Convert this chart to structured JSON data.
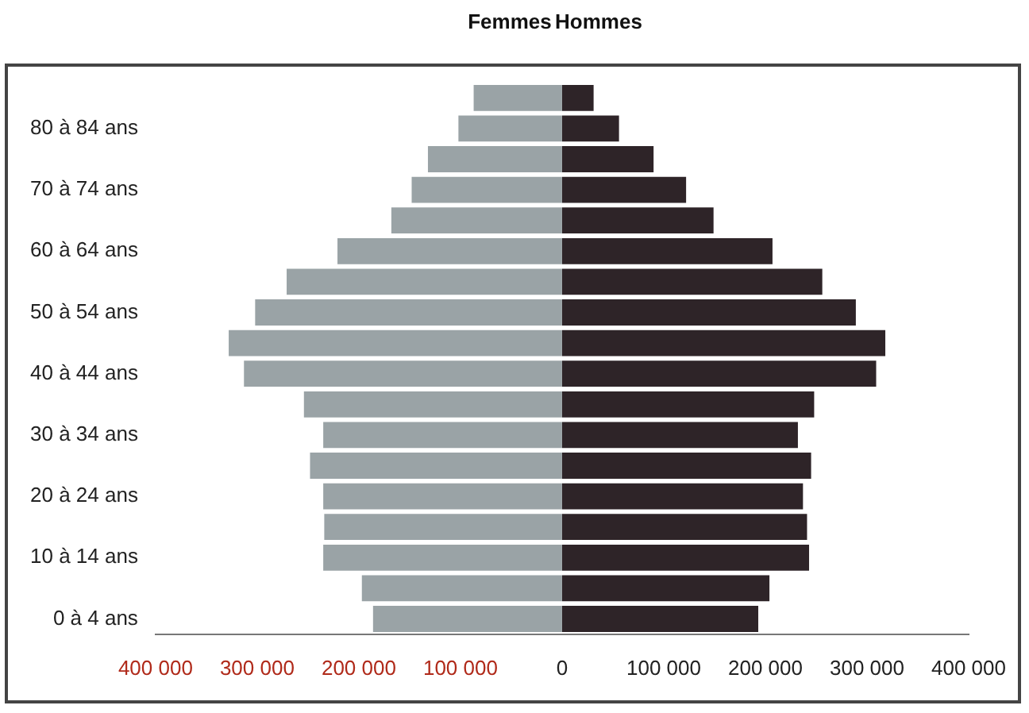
{
  "chart_data": {
    "type": "bar",
    "orientation": "horizontal",
    "stacked": true,
    "legend": "top",
    "grid": false,
    "categories": [
      null,
      "80 à 84 ans",
      null,
      "70 à 74 ans",
      null,
      "60 à 64 ans",
      null,
      "50 à 54 ans",
      null,
      "40 à 44 ans",
      null,
      "30 à 34 ans",
      null,
      "20 à 24 ans",
      null,
      "10 à 14 ans",
      null,
      "0 à 4 ans"
    ],
    "series": [
      {
        "name": "Femmes",
        "color": "#9aa3a6",
        "values": [
          -87000,
          -102000,
          -132000,
          -148000,
          -168000,
          -221000,
          -271000,
          -302000,
          -328000,
          -313000,
          -254000,
          -235000,
          -248000,
          -235000,
          -234000,
          -235000,
          -197000,
          -186000
        ]
      },
      {
        "name": "Hommes",
        "color": "#2e2428",
        "values": [
          31000,
          56000,
          90000,
          122000,
          149000,
          207000,
          256000,
          289000,
          318000,
          309000,
          248000,
          232000,
          245000,
          237000,
          241000,
          243000,
          204000,
          193000
        ]
      }
    ],
    "xlim": [
      -400000,
      400000
    ],
    "xticks": [
      {
        "value": -400000,
        "label": "400 000"
      },
      {
        "value": -300000,
        "label": "300 000"
      },
      {
        "value": -200000,
        "label": "200 000"
      },
      {
        "value": -100000,
        "label": "100 000"
      },
      0,
      {
        "value": 100000,
        "label": "100 000"
      },
      {
        "value": 200000,
        "label": "200 000"
      },
      {
        "value": 300000,
        "label": "300 000"
      },
      {
        "value": 400000,
        "label": "400 000"
      }
    ]
  }
}
